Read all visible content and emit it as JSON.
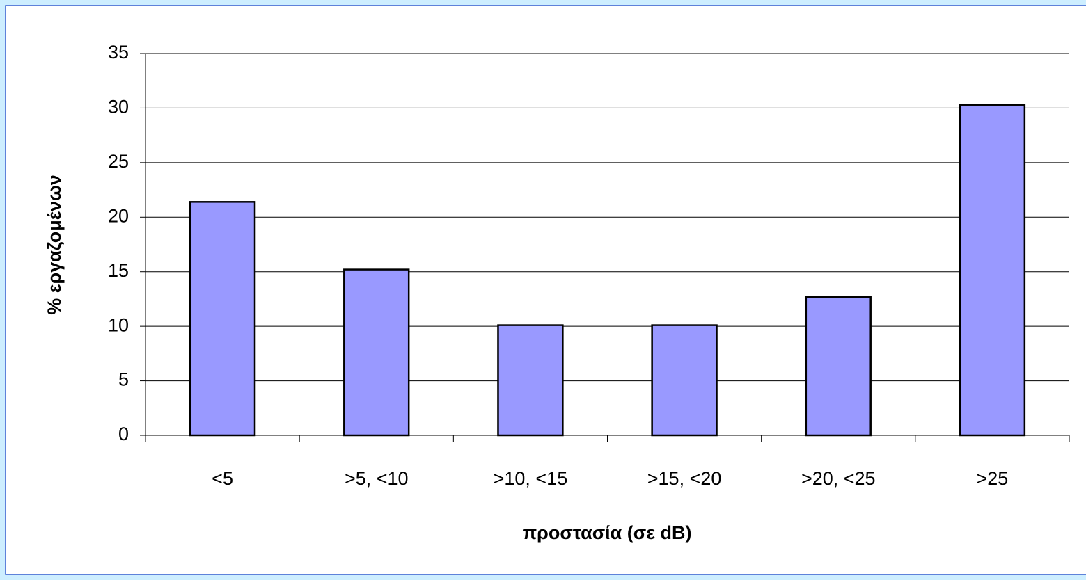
{
  "chart_data": {
    "type": "bar",
    "categories": [
      "<5",
      ">5, <10",
      ">10, <15",
      ">15, <20",
      ">20, <25",
      ">25"
    ],
    "values": [
      21.4,
      15.2,
      10.1,
      10.1,
      12.7,
      30.3
    ],
    "color": "#9999ff",
    "xlabel": "προστασία (σε dB)",
    "ylabel": "% εργαζομένων",
    "ylim": [
      0,
      35
    ],
    "yticks": [
      0,
      5,
      10,
      15,
      20,
      25,
      30,
      35
    ],
    "grid": true
  }
}
